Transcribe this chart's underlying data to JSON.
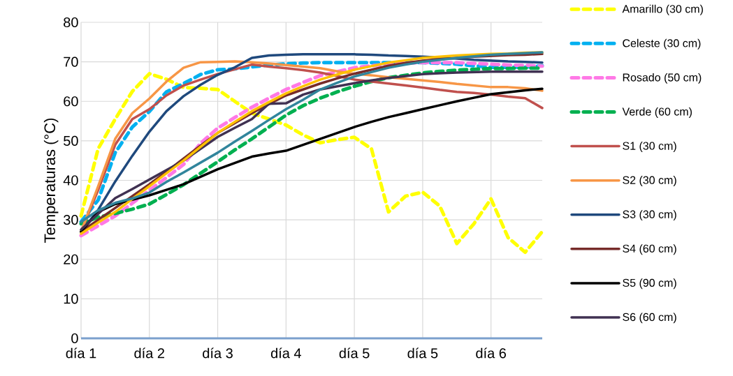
{
  "chart_data": {
    "type": "line",
    "ylabel": "Temperaturas (°C)",
    "ylim": [
      0,
      80
    ],
    "categories": [
      "día 1",
      null,
      null,
      null,
      "día 2",
      null,
      null,
      null,
      "día 3",
      null,
      null,
      null,
      "día 4",
      null,
      null,
      null,
      "día 5",
      null,
      null,
      null,
      "día 5",
      null,
      null,
      null,
      "día 6",
      null,
      null,
      null
    ],
    "yticks": [
      0,
      10,
      20,
      30,
      40,
      50,
      60,
      70,
      80
    ],
    "grid": true,
    "legend": "right",
    "series": [
      {
        "name": "Amarillo (30 cm)",
        "color": "#ffff00",
        "line_style": "dashed",
        "values": [
          31,
          48,
          55.5,
          62.5,
          67,
          65.6,
          63.5,
          63.3,
          63,
          60,
          57,
          55.5,
          54,
          51.5,
          49.5,
          50.3,
          50.9,
          48,
          32,
          36,
          37,
          33.5,
          24,
          29,
          35.3,
          25.5,
          21.8,
          27
        ]
      },
      {
        "name": "Celeste (30 cm)",
        "color": "#00b0f0",
        "line_style": "dashed",
        "values": [
          29.5,
          35,
          47,
          53.5,
          57.4,
          62.4,
          64.5,
          66.8,
          68,
          68.2,
          68.7,
          69.2,
          69.5,
          69.7,
          69.8,
          69.8,
          69.8,
          69.8,
          69.8,
          69.8,
          69.8,
          69.6,
          69.4,
          69,
          68.6,
          68.6,
          68.7,
          69
        ]
      },
      {
        "name": "Rosado (50 cm)",
        "color": "#ff79e6",
        "line_style": "dashed",
        "values": [
          26,
          28.5,
          31,
          34.2,
          37.5,
          40.7,
          44,
          49.4,
          53.2,
          55.9,
          58.5,
          60.8,
          63,
          64.8,
          66.5,
          67.5,
          68.5,
          69,
          69.5,
          69.7,
          69.8,
          69.8,
          69.8,
          69.6,
          69.4,
          69.2,
          69.1,
          68.9
        ]
      },
      {
        "name": "Verde (60 cm)",
        "color": "#00b050",
        "line_style": "dashed",
        "values": [
          29,
          30.7,
          31.6,
          32.7,
          34,
          36.4,
          38.9,
          41.8,
          44.7,
          47.7,
          50.5,
          53.5,
          56.5,
          58.9,
          60.8,
          62.4,
          63.8,
          65,
          66,
          66.6,
          67.2,
          67.6,
          67.9,
          68.1,
          68.3,
          68.3,
          68.4,
          68.4
        ]
      },
      {
        "name": "S1 (30 cm)",
        "color": "#c0504d",
        "line_style": "solid",
        "values": [
          27,
          37.5,
          49,
          55.5,
          58,
          61.5,
          64,
          65.5,
          66.9,
          68.1,
          69.3,
          68.8,
          68.4,
          67.9,
          67.3,
          66.4,
          65.5,
          65,
          64.5,
          64,
          63.5,
          62.9,
          62.4,
          62.1,
          61.7,
          61.2,
          60.8,
          58.3
        ]
      },
      {
        "name": "S2 (30 cm)",
        "color": "#f79646",
        "line_style": "solid",
        "values": [
          27,
          38.5,
          50.5,
          57,
          60.7,
          65,
          68.5,
          69.9,
          70,
          70.1,
          69.9,
          69.6,
          69.2,
          68.8,
          68.4,
          67.6,
          67,
          66.6,
          66.1,
          65.7,
          65.3,
          64.9,
          64.4,
          64,
          63.6,
          63.6,
          63.3,
          62.7
        ]
      },
      {
        "name": "S3 (30 cm)",
        "color": "#1f497d",
        "line_style": "solid",
        "values": [
          27,
          32.5,
          39.7,
          46.2,
          52.3,
          57.5,
          61.3,
          64.2,
          66.7,
          68.6,
          71,
          71.6,
          71.8,
          71.9,
          71.9,
          71.9,
          71.9,
          71.8,
          71.6,
          71.5,
          71.3,
          71.1,
          70.8,
          70.5,
          70.3,
          70.1,
          70,
          69.8
        ]
      },
      {
        "name": "S4 (60 cm)",
        "color": "#772c2a",
        "line_style": "solid",
        "values": [
          27,
          30,
          33,
          36,
          39,
          42.2,
          45.5,
          48.8,
          52,
          54.5,
          57,
          59.3,
          61.5,
          63,
          64.5,
          65.8,
          67,
          68,
          69,
          69.7,
          70.3,
          70.7,
          71,
          71.3,
          71.5,
          71.7,
          71.8,
          72
        ]
      },
      {
        "name": "S5 (90 cm)",
        "color": "#000000",
        "line_style": "solid",
        "values": [
          27,
          32,
          34,
          35.1,
          36.2,
          37.6,
          39,
          40.9,
          42.8,
          44.4,
          46,
          46.8,
          47.5,
          49,
          50.5,
          52,
          53.5,
          54.8,
          56,
          57,
          58,
          59,
          60,
          60.9,
          61.8,
          62.3,
          62.8,
          63.2
        ]
      },
      {
        "name": "S6 (60 cm)",
        "color": "#403152",
        "line_style": "solid",
        "values": [
          27.5,
          31.5,
          35.5,
          37.8,
          40.2,
          42.6,
          45,
          48,
          51,
          53.3,
          55.5,
          59.4,
          59.5,
          61.7,
          63,
          63.8,
          64.6,
          65.3,
          65.9,
          66.4,
          66.9,
          67.1,
          67.3,
          67.4,
          67.5,
          67.5,
          67.5,
          67.5
        ]
      },
      {
        "color": "#ffc000",
        "line_style": "solid",
        "values": [
          26.5,
          29.3,
          32,
          35.3,
          38.5,
          41.8,
          45,
          48.5,
          52,
          54.8,
          57.5,
          59.8,
          62,
          63.8,
          65.5,
          66.8,
          68,
          68.9,
          69.8,
          70.4,
          71,
          71.3,
          71.6,
          71.8,
          72,
          72.1,
          72.3,
          72.4
        ]
      },
      {
        "color": "#31859c",
        "line_style": "solid",
        "values": [
          29.5,
          32.4,
          34.3,
          35.4,
          36.9,
          39.6,
          42,
          44.5,
          47,
          49.8,
          52.5,
          55.3,
          58,
          60.4,
          63,
          64.7,
          66.3,
          67.4,
          68.5,
          69.3,
          70,
          70.5,
          71,
          71.4,
          71.8,
          72,
          72.2,
          72.4
        ]
      }
    ]
  }
}
